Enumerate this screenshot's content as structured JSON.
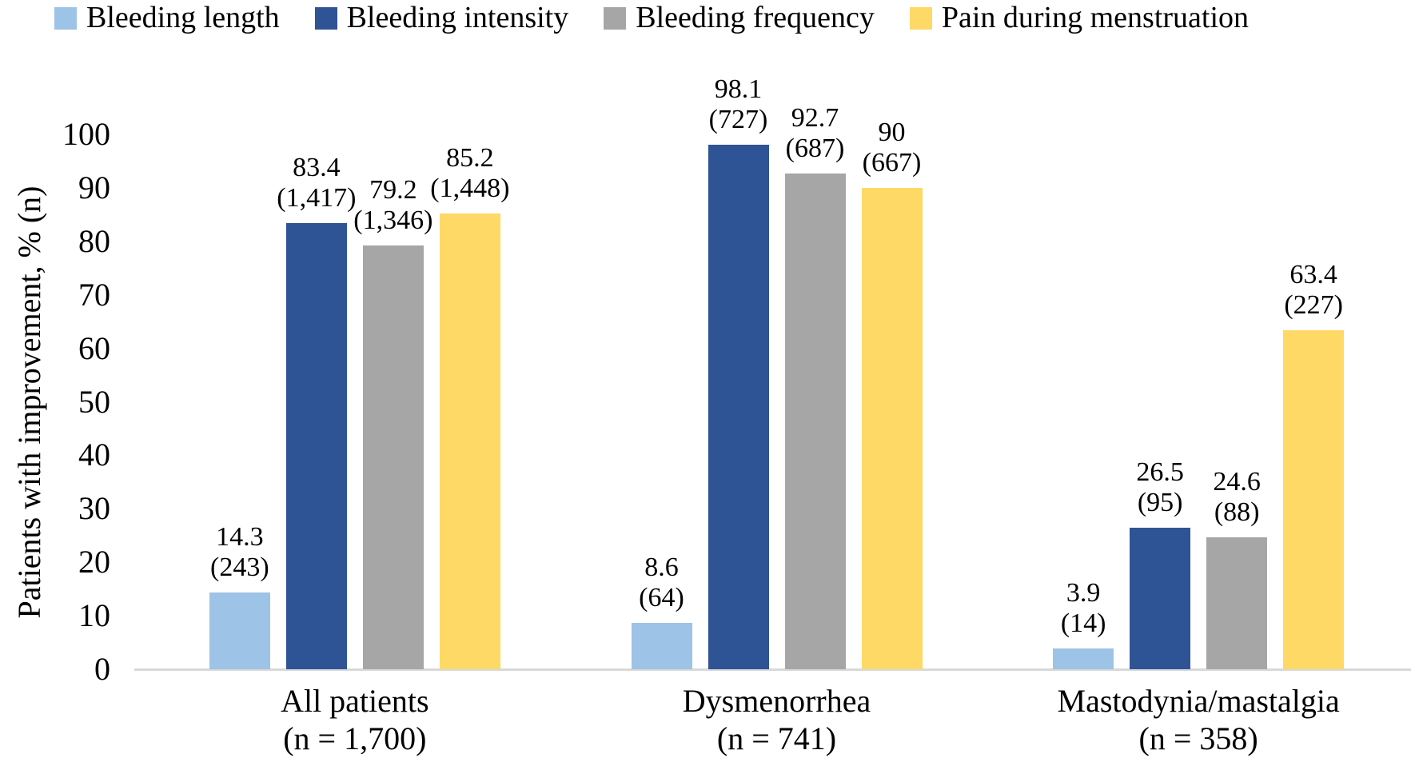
{
  "chart_data": {
    "type": "bar",
    "title": "",
    "xlabel": "",
    "ylabel": "Patients with improvement, % (n)",
    "ylim": [
      0,
      100
    ],
    "yticks": [
      0,
      10,
      20,
      30,
      40,
      50,
      60,
      70,
      80,
      90,
      100
    ],
    "grid": false,
    "legend_position": "top",
    "axis_line_color": "#d9d9d9",
    "text_color": "#000000",
    "background_color": "#ffffff",
    "categories": [
      {
        "line1": "All patients",
        "line2": "(n = 1,700)"
      },
      {
        "line1": "Dysmenorrhea",
        "line2": "(n = 741)"
      },
      {
        "line1": "Mastodynia/mastalgia",
        "line2": "(n = 358)"
      }
    ],
    "series": [
      {
        "name": "Bleeding length",
        "color": "#9DC3E6",
        "values": [
          14.3,
          8.6,
          3.9
        ],
        "value_labels": [
          "14.3",
          "8.6",
          "3.9"
        ],
        "counts": [
          "243",
          "64",
          "14"
        ]
      },
      {
        "name": "Bleeding intensity",
        "color": "#2F5496",
        "values": [
          83.4,
          98.1,
          26.5
        ],
        "value_labels": [
          "83.4",
          "98.1",
          "26.5"
        ],
        "counts": [
          "1,417",
          "727",
          "95"
        ]
      },
      {
        "name": "Bleeding frequency",
        "color": "#A6A6A6",
        "values": [
          79.2,
          92.7,
          24.6
        ],
        "value_labels": [
          "79.2",
          "92.7",
          "24.6"
        ],
        "counts": [
          "1,346",
          "687",
          "88"
        ]
      },
      {
        "name": "Pain during menstruation",
        "color": "#FFD966",
        "values": [
          85.2,
          90,
          63.4
        ],
        "value_labels": [
          "85.2",
          "90",
          "63.4"
        ],
        "counts": [
          "1,448",
          "667",
          "227"
        ]
      }
    ]
  }
}
